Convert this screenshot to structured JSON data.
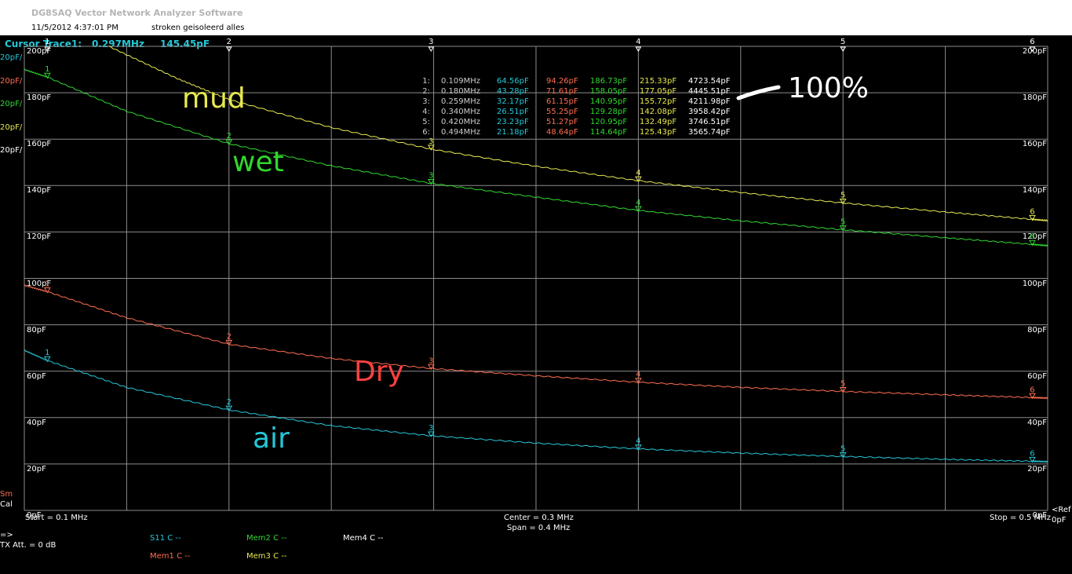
{
  "window": {
    "title": "DG8SAQ Vector Network Analyzer Software",
    "date_time": "11/5/2012   4:37:01 PM",
    "note": "stroken geisoleerd alles"
  },
  "cursor": {
    "label": "Cursor Trace1:",
    "freq": "0.297MHz",
    "value": "145.45pF"
  },
  "edge_labels": [
    {
      "text": "20pF/",
      "color": "#23c8d8"
    },
    {
      "text": "20pF/",
      "color": "#ff6e50"
    },
    {
      "text": "20pF/",
      "color": "#30d830"
    },
    {
      "text": "20pF/",
      "color": "#e8e850"
    },
    {
      "text": "20pF/",
      "color": "#ffffff"
    }
  ],
  "sm_cal": {
    "sm": "Sm",
    "cal": "Cal"
  },
  "ref": {
    "label": "<Ref",
    "value": "0pF"
  },
  "footer": {
    "start": "Start = 0.1 MHz",
    "center": "Center = 0.3 MHz",
    "span": "Span = 0.4 MHz",
    "stop": "Stop = 0.5 MHz",
    "arrow": "=>",
    "tx": "TX Att.   = 0 dB"
  },
  "legend": [
    {
      "text": "S11    C --",
      "color": "#23c8d8"
    },
    {
      "text": "Mem2 C --",
      "color": "#30d830"
    },
    {
      "text": "Mem4 C --",
      "color": "#ffffff"
    },
    {
      "text": "Mem1 C --",
      "color": "#ff6e50"
    },
    {
      "text": "Mem3 C --",
      "color": "#e8e850"
    }
  ],
  "annotations": [
    {
      "text": "mud",
      "color": "#e8e850"
    },
    {
      "text": "wet",
      "color": "#30d830"
    },
    {
      "text": "Dry",
      "color": "#ff4040"
    },
    {
      "text": "air",
      "color": "#23c8d8"
    },
    {
      "text": "100%",
      "color": "#ffffff"
    }
  ],
  "marker_table": [
    [
      "1:",
      "0.109MHz",
      "64.56pF",
      "94.26pF",
      "186.73pF",
      "215.33pF",
      "4723.54pF"
    ],
    [
      "2:",
      "0.180MHz",
      "43.28pF",
      "71.61pF",
      "158.05pF",
      "177.05pF",
      "4445.51pF"
    ],
    [
      "3:",
      "0.259MHz",
      "32.17pF",
      "61.15pF",
      "140.95pF",
      "155.72pF",
      "4211.98pF"
    ],
    [
      "4:",
      "0.340MHz",
      "26.51pF",
      "55.25pF",
      "129.28pF",
      "142.08pF",
      "3958.42pF"
    ],
    [
      "5:",
      "0.420MHz",
      "23.23pF",
      "51.27pF",
      "120.95pF",
      "132.49pF",
      "3746.51pF"
    ],
    [
      "6:",
      "0.494MHz",
      "21.18pF",
      "48.64pF",
      "114.64pF",
      "125.43pF",
      "3565.74pF"
    ]
  ],
  "table_colors": [
    "#cccccc",
    "#cccccc",
    "#23c8d8",
    "#ff6e50",
    "#30d830",
    "#e8e850",
    "#ffffff"
  ],
  "chart_data": {
    "type": "line",
    "xlabel": "",
    "ylabel": "",
    "xlim": [
      0.1,
      0.5
    ],
    "ylim": [
      0,
      200
    ],
    "y_ticks": [
      "0pF",
      "20pF",
      "40pF",
      "60pF",
      "80pF",
      "100pF",
      "120pF",
      "140pF",
      "160pF",
      "180pF",
      "200pF"
    ],
    "x_markers": [
      "1",
      "2",
      "3",
      "4",
      "5",
      "6"
    ],
    "series": [
      {
        "name": "S11",
        "color": "#23c8d8",
        "x": [
          0.1,
          0.109,
          0.14,
          0.18,
          0.22,
          0.259,
          0.3,
          0.34,
          0.38,
          0.42,
          0.46,
          0.494,
          0.5
        ],
        "y": [
          69,
          64.56,
          53,
          43.28,
          36.5,
          32.17,
          29,
          26.51,
          24.7,
          23.23,
          22,
          21.18,
          21
        ]
      },
      {
        "name": "Mem1",
        "color": "#ff6e50",
        "x": [
          0.1,
          0.109,
          0.14,
          0.18,
          0.22,
          0.259,
          0.3,
          0.34,
          0.38,
          0.42,
          0.46,
          0.494,
          0.5
        ],
        "y": [
          97,
          94.26,
          83,
          71.61,
          65.5,
          61.15,
          58,
          55.25,
          53,
          51.27,
          49.8,
          48.64,
          48.4
        ]
      },
      {
        "name": "Mem2",
        "color": "#30d830",
        "x": [
          0.1,
          0.109,
          0.14,
          0.18,
          0.22,
          0.259,
          0.3,
          0.34,
          0.38,
          0.42,
          0.46,
          0.494,
          0.5
        ],
        "y": [
          190,
          186.73,
          172,
          158.05,
          148.5,
          140.95,
          135,
          129.28,
          124.8,
          120.95,
          117.5,
          114.64,
          114.1
        ]
      },
      {
        "name": "Mem3",
        "color": "#e8e850",
        "x": [
          0.133,
          0.16,
          0.18,
          0.22,
          0.259,
          0.3,
          0.34,
          0.38,
          0.42,
          0.46,
          0.494,
          0.5
        ],
        "y": [
          200,
          186,
          177.05,
          165,
          155.72,
          148.3,
          142.08,
          137,
          132.49,
          128.6,
          125.43,
          124.9
        ]
      }
    ],
    "markers": [
      {
        "series": 0,
        "x": [
          0.109,
          0.18,
          0.259,
          0.34,
          0.42,
          0.494
        ],
        "y": [
          64.56,
          43.28,
          32.17,
          26.51,
          23.23,
          21.18
        ]
      },
      {
        "series": 1,
        "x": [
          0.109,
          0.18,
          0.259,
          0.34,
          0.42,
          0.494
        ],
        "y": [
          94.26,
          71.61,
          61.15,
          55.25,
          51.27,
          48.64
        ]
      },
      {
        "series": 2,
        "x": [
          0.109,
          0.18,
          0.259,
          0.34,
          0.42,
          0.494
        ],
        "y": [
          186.73,
          158.05,
          140.95,
          129.28,
          120.95,
          114.64
        ]
      },
      {
        "series": 3,
        "x": [
          0.259,
          0.34,
          0.42,
          0.494
        ],
        "y": [
          155.72,
          142.08,
          132.49,
          125.43
        ]
      }
    ]
  }
}
